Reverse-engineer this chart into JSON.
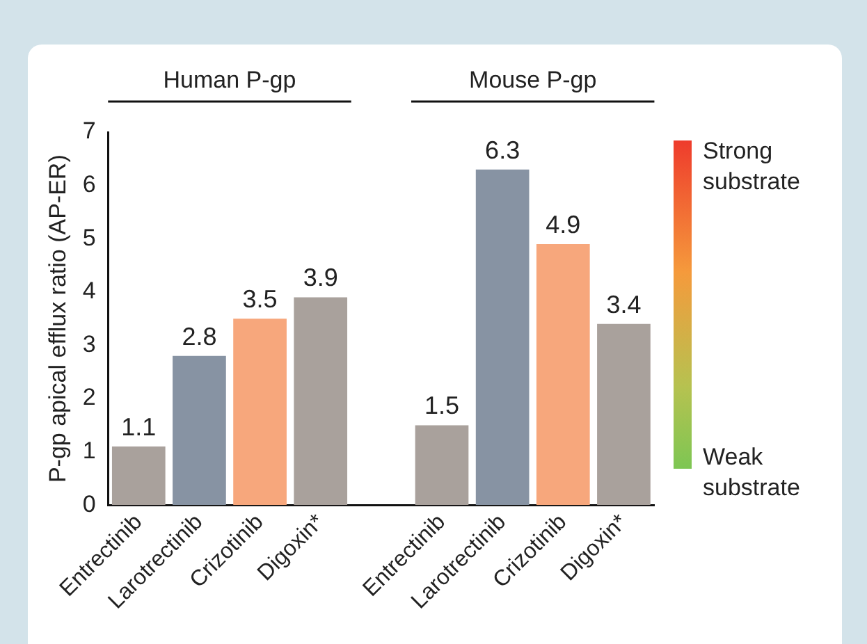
{
  "chart_data": {
    "type": "bar",
    "ylabel": "P-gp apical efflux ratio (AP-ER)",
    "categories": [
      "Entrectinib",
      "Larotrectinib",
      "Crizotinib",
      "Digoxin*",
      null,
      "Entrectinib",
      "Larotrectinib",
      "Crizotinib",
      "Digoxin*"
    ],
    "values": [
      1.1,
      2.8,
      3.5,
      3.9,
      null,
      1.5,
      6.3,
      4.9,
      3.4
    ],
    "colors": [
      "#a9a19c",
      "#8793a3",
      "#f7a77c",
      "#a9a19c",
      "#ffffff",
      "#a9a19c",
      "#8793a3",
      "#f7a77c",
      "#a9a19c"
    ],
    "ylim": [
      0,
      7
    ],
    "yticks": [
      0,
      1,
      2,
      3,
      4,
      5,
      6,
      7
    ],
    "grid": false,
    "data_labels": true,
    "legend": false,
    "annotations": [
      "Human P-gp",
      "Mouse P-gp",
      "Strong substrate",
      "Weak substrate"
    ]
  }
}
